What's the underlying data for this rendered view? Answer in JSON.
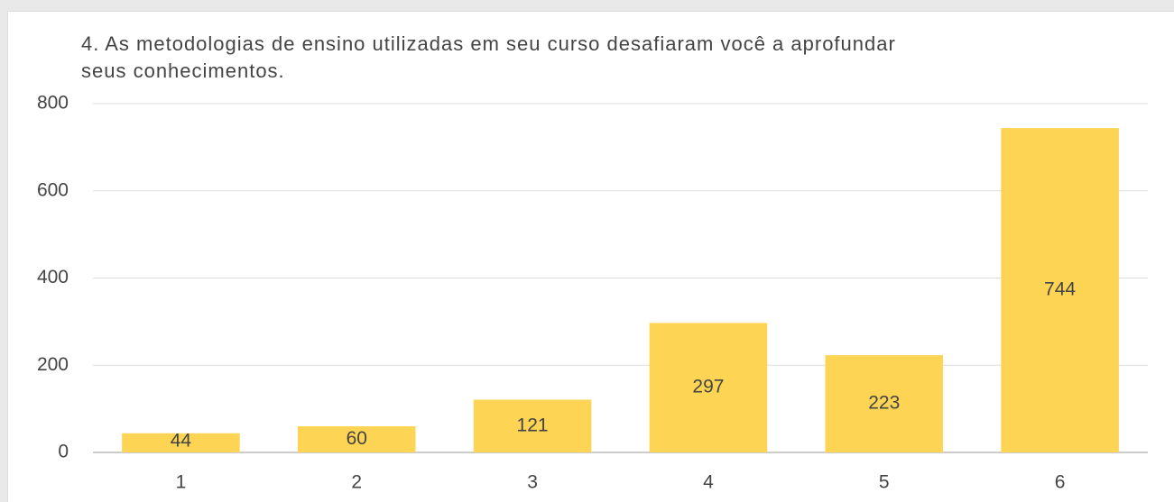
{
  "chart_data": {
    "type": "bar",
    "title": "4. As metodologias de ensino utilizadas em seu curso desafiaram você a aprofundar seus conhecimentos.",
    "categories": [
      "1",
      "2",
      "3",
      "4",
      "5",
      "6"
    ],
    "values": [
      44,
      60,
      121,
      297,
      223,
      744
    ],
    "color": "#fdd453",
    "ylim": [
      0,
      800
    ],
    "yticks": [
      0,
      200,
      400,
      600,
      800
    ],
    "grid": true
  }
}
